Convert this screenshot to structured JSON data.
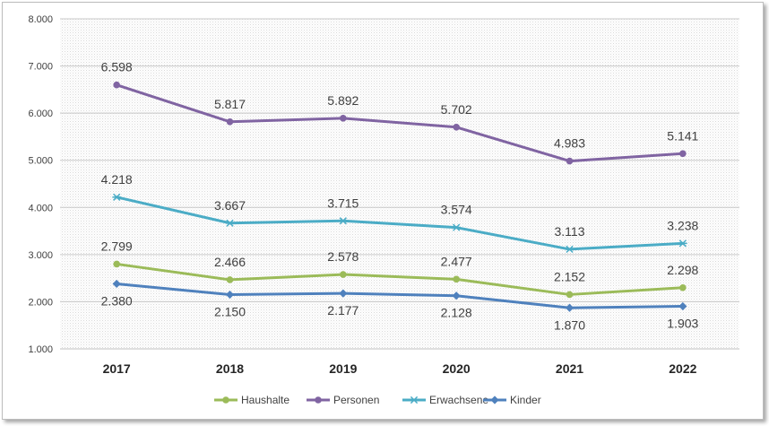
{
  "chart_data": {
    "type": "line",
    "title": "",
    "xlabel": "",
    "ylabel": "",
    "categories": [
      "2017",
      "2018",
      "2019",
      "2020",
      "2021",
      "2022"
    ],
    "ylim": [
      1000,
      8000
    ],
    "y_ticks": [
      "1.000",
      "2.000",
      "3.000",
      "4.000",
      "5.000",
      "6.000",
      "7.000",
      "8.000"
    ],
    "grid": true,
    "legend_position": "bottom",
    "series": [
      {
        "name": "Haushalte",
        "color": "#9bbb59",
        "marker": "circle",
        "values": [
          2799,
          2466,
          2578,
          2477,
          2152,
          2298
        ],
        "labels": [
          "2.799",
          "2.466",
          "2.578",
          "2.477",
          "2.152",
          "2.298"
        ],
        "label_position": "above"
      },
      {
        "name": "Personen",
        "color": "#8064a2",
        "marker": "circle",
        "values": [
          6598,
          5817,
          5892,
          5702,
          4983,
          5141
        ],
        "labels": [
          "6.598",
          "5.817",
          "5.892",
          "5.702",
          "4.983",
          "5.141"
        ],
        "label_position": "above"
      },
      {
        "name": "Erwachsene",
        "color": "#4bacc6",
        "marker": "star",
        "values": [
          4218,
          3667,
          3715,
          3574,
          3113,
          3238
        ],
        "labels": [
          "4.218",
          "3.667",
          "3.715",
          "3.574",
          "3.113",
          "3.238"
        ],
        "label_position": "above"
      },
      {
        "name": "Kinder",
        "color": "#4f81bd",
        "marker": "diamond",
        "values": [
          2380,
          2150,
          2177,
          2128,
          1870,
          1903
        ],
        "labels": [
          "2.380",
          "2.150",
          "2.177",
          "2.128",
          "1.870",
          "1.903"
        ],
        "label_position": "below"
      }
    ]
  }
}
